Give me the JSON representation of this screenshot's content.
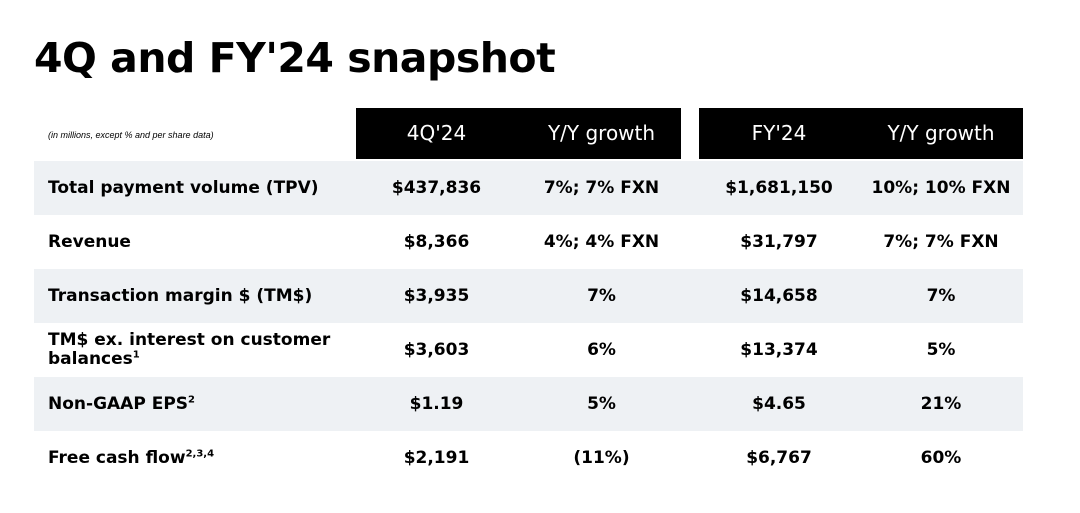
{
  "title": "4Q and FY'24 snapshot",
  "note": "(in millions, except % and per share data)",
  "headers": {
    "q_value": "4Q'24",
    "q_growth": "Y/Y growth",
    "fy_value": "FY'24",
    "fy_growth": "Y/Y growth"
  },
  "rows": [
    {
      "label": "Total payment volume (TPV)",
      "sup": "",
      "q_value": "$437,836",
      "q_growth": "7%; 7% FXN",
      "fy_value": "$1,681,150",
      "fy_growth": "10%; 10% FXN"
    },
    {
      "label": "Revenue",
      "sup": "",
      "q_value": "$8,366",
      "q_growth": "4%; 4% FXN",
      "fy_value": "$31,797",
      "fy_growth": "7%; 7% FXN"
    },
    {
      "label": "Transaction margin $ (TM$)",
      "sup": "",
      "q_value": "$3,935",
      "q_growth": "7%",
      "fy_value": "$14,658",
      "fy_growth": "7%"
    },
    {
      "label_line1": "TM$ ex. interest on customer",
      "label_line2": "balances",
      "sup": "1",
      "q_value": "$3,603",
      "q_growth": "6%",
      "fy_value": "$13,374",
      "fy_growth": "5%"
    },
    {
      "label": "Non-GAAP EPS",
      "sup": "2",
      "q_value": "$1.19",
      "q_growth": "5%",
      "fy_value": "$4.65",
      "fy_growth": "21%"
    },
    {
      "label": "Free cash flow",
      "sup": "2,3,4",
      "q_value": "$2,191",
      "q_growth": "(11%)",
      "fy_value": "$6,767",
      "fy_growth": "60%"
    }
  ],
  "colors": {
    "header_bg": "#000000",
    "row_shade": "#eef1f4",
    "text": "#000000"
  }
}
